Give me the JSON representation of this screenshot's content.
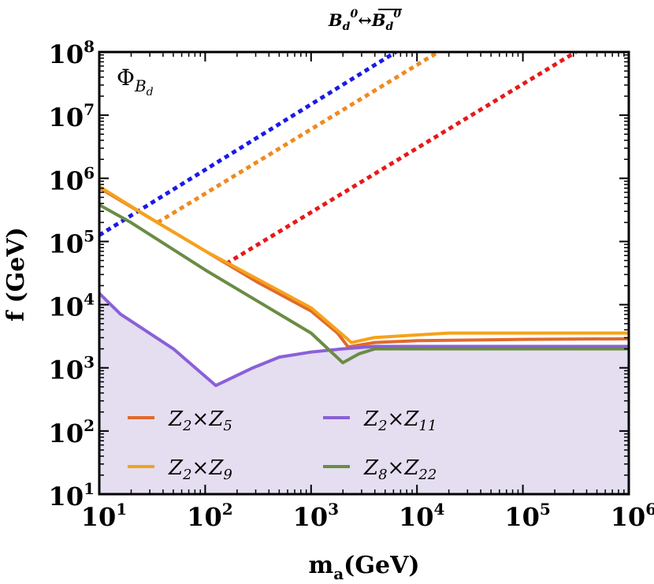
{
  "chart_data": {
    "type": "line",
    "title": {
      "lhs_base": "B",
      "lhs_sub": "d",
      "lhs_sup": "0",
      "arrow": "↔",
      "rhs_base": "B",
      "rhs_sub": "d",
      "rhs_sup": "0"
    },
    "panel_label": {
      "base": "Φ",
      "sub_base": "B",
      "sub_sub": "d"
    },
    "xlabel": {
      "base": "m",
      "sub": "a",
      "unit": "(GeV)"
    },
    "ylabel": "f (GeV)",
    "x_scale": "log",
    "y_scale": "log",
    "xlim_log10": [
      1,
      6
    ],
    "ylim_log10": [
      1,
      8
    ],
    "x_ticks": [
      {
        "base": "10",
        "exp": "1",
        "value": 1
      },
      {
        "base": "10",
        "exp": "2",
        "value": 2
      },
      {
        "base": "10",
        "exp": "3",
        "value": 3
      },
      {
        "base": "10",
        "exp": "4",
        "value": 4
      },
      {
        "base": "10",
        "exp": "5",
        "value": 5
      },
      {
        "base": "10",
        "exp": "6",
        "value": 6
      }
    ],
    "y_ticks": [
      {
        "base": "10",
        "exp": "1",
        "value": 1
      },
      {
        "base": "10",
        "exp": "2",
        "value": 2
      },
      {
        "base": "10",
        "exp": "3",
        "value": 3
      },
      {
        "base": "10",
        "exp": "4",
        "value": 4
      },
      {
        "base": "10",
        "exp": "5",
        "value": 5
      },
      {
        "base": "10",
        "exp": "6",
        "value": 6
      },
      {
        "base": "10",
        "exp": "7",
        "value": 7
      },
      {
        "base": "10",
        "exp": "8",
        "value": 8
      }
    ],
    "shaded_region": {
      "series": "Z2×Z11",
      "color": "#e4def0"
    },
    "series": [
      {
        "name": "Z2×Z5",
        "key": "z2z5",
        "color": "#e06a2c",
        "label": {
          "a": "Z",
          "as": "2",
          "b": "Z",
          "bs": "5"
        },
        "log10_x": [
          1,
          1.5,
          2,
          2.5,
          3,
          3.25,
          3.35,
          3.6,
          4,
          5,
          6
        ],
        "log10_y": [
          5.85,
          5.35,
          4.85,
          4.35,
          3.9,
          3.55,
          3.33,
          3.4,
          3.43,
          3.45,
          3.46
        ]
      },
      {
        "name": "Z2×Z9",
        "key": "z2z9",
        "color": "#f5a21b",
        "label": {
          "a": "Z",
          "as": "2",
          "b": "Z",
          "bs": "9"
        },
        "log10_x": [
          1,
          1.5,
          2,
          2.5,
          3,
          3.3,
          3.38,
          3.6,
          4,
          4.3,
          5,
          6
        ],
        "log10_y": [
          5.87,
          5.35,
          4.85,
          4.4,
          3.95,
          3.52,
          3.4,
          3.48,
          3.52,
          3.55,
          3.55,
          3.55
        ]
      },
      {
        "name": "Z2×Z11",
        "key": "z2z11",
        "color": "#8a60d8",
        "label": {
          "a": "Z",
          "as": "2",
          "b": "Z",
          "bs": "11"
        },
        "log10_x": [
          1,
          1.2,
          1.7,
          2.1,
          2.45,
          2.7,
          3.0,
          3.3,
          3.6,
          4,
          5,
          6
        ],
        "log10_y": [
          4.18,
          3.85,
          3.3,
          2.72,
          3.0,
          3.17,
          3.25,
          3.3,
          3.34,
          3.34,
          3.34,
          3.34
        ]
      },
      {
        "name": "Z8×Z22",
        "key": "z8z22",
        "color": "#6a8c45",
        "label": {
          "a": "Z",
          "as": "8",
          "b": "Z",
          "bs": "22"
        },
        "log10_x": [
          1,
          1.3,
          2,
          2.5,
          3.0,
          3.3,
          3.45,
          3.6,
          4,
          5,
          6
        ],
        "log10_y": [
          5.58,
          5.3,
          4.55,
          4.05,
          3.55,
          3.08,
          3.22,
          3.3,
          3.3,
          3.3,
          3.3
        ]
      },
      {
        "name": "blue dotted",
        "key": "blue-dotted",
        "color": "#1a1ae6",
        "dotted": true,
        "log10_x": [
          1,
          3.8
        ],
        "log10_y": [
          5.1,
          8
        ]
      },
      {
        "name": "orange dotted",
        "key": "orange-dotted",
        "color": "#f08a20",
        "dotted": true,
        "log10_x": [
          1.55,
          4.2
        ],
        "log10_y": [
          5.3,
          8
        ]
      },
      {
        "name": "red dotted",
        "key": "red-dotted",
        "color": "#e61a1a",
        "dotted": true,
        "log10_x": [
          2.2,
          5.5
        ],
        "log10_y": [
          4.65,
          8
        ]
      }
    ],
    "legend": [
      {
        "series": "Z2×Z5",
        "column": 0,
        "row": 0
      },
      {
        "series": "Z2×Z11",
        "column": 1,
        "row": 0
      },
      {
        "series": "Z2×Z9",
        "column": 0,
        "row": 1
      },
      {
        "series": "Z8×Z22",
        "column": 1,
        "row": 1
      }
    ],
    "legend_position": "bottom-left inside plot"
  }
}
